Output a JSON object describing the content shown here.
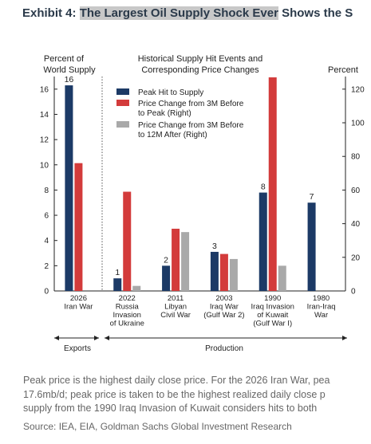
{
  "exhibit": {
    "prefix": "Exhibit 4: ",
    "title_highlight": "The Largest Oil Supply Shock Ever",
    "title_rest": " Shows the S"
  },
  "chart_data": {
    "type": "bar",
    "title_lines": [
      "Historical Supply Hit Events and",
      "Corresponding Price Changes"
    ],
    "left_axis_label": [
      "Percent of",
      "World Supply"
    ],
    "right_axis_label": "Percent",
    "left_ylim": [
      0,
      17
    ],
    "left_ticks": [
      0,
      2,
      4,
      6,
      8,
      10,
      12,
      14,
      16
    ],
    "right_ylim": [
      0,
      127.5
    ],
    "right_ticks": [
      0,
      20,
      40,
      60,
      80,
      100,
      120
    ],
    "categories": [
      [
        "2026",
        "Iran War"
      ],
      [
        "2022",
        "Russia",
        "Invasion",
        "of Ukraine"
      ],
      [
        "2011",
        "Libyan",
        "Civil War"
      ],
      [
        "2003",
        "Iraq War",
        "(Gulf War 2)"
      ],
      [
        "1990",
        "Iraq Invasion",
        "of Kuwait",
        "(Gulf War I)"
      ],
      [
        "1980",
        "Iran-Iraq",
        "War"
      ]
    ],
    "series": [
      {
        "name": "Peak Hit to Supply",
        "axis": "left",
        "color": "#1c3a66",
        "values": [
          16.3,
          1.0,
          2.0,
          3.1,
          7.8,
          7.0
        ]
      },
      {
        "name": "Price Change from 3M Before to Peak (Right)",
        "axis": "right",
        "color": "#d33b3b",
        "values": [
          76,
          59,
          37,
          22,
          127,
          null
        ]
      },
      {
        "name": "Price Change from 3M Before to 12M After (Right)",
        "axis": "right",
        "color": "#a9a9a9",
        "values": [
          null,
          3,
          35,
          19,
          15,
          null
        ]
      }
    ],
    "legend_lines": [
      [
        "Peak Hit to Supply"
      ],
      [
        "Price Change from 3M Before",
        "to Peak (Right)"
      ],
      [
        "Price Change from 3M Before",
        "to 12M After (Right)"
      ]
    ],
    "data_labels": [
      "16",
      "1",
      "2",
      "3",
      "8",
      "7"
    ],
    "groups": [
      "Exports",
      "Production"
    ]
  },
  "footer_lines": [
    "Peak price is the highest daily close price. For the 2026 Iran War, pea",
    "17.6mb/d; peak price is taken to be the highest realized daily close p",
    "supply from the 1990 Iraq Invasion of Kuwait considers hits to both"
  ],
  "source": "Source: IEA, EIA, Goldman Sachs Global Investment Research"
}
